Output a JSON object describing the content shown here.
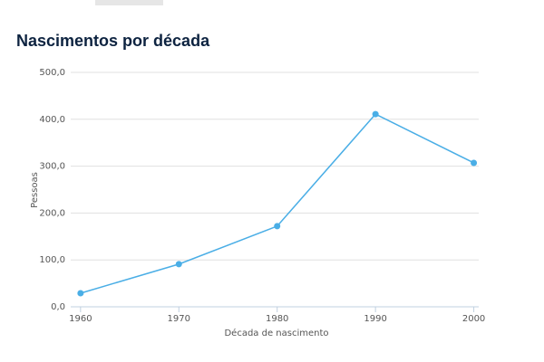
{
  "chart_data": {
    "type": "line",
    "title": "Nascimentos por década",
    "x_label": "Década de nascimento",
    "y_label": "Pessoas",
    "x": [
      1960,
      1970,
      1980,
      1990,
      2000
    ],
    "series": [
      {
        "name": "Pessoas",
        "color": "#4aaee6",
        "values": [
          29,
          91,
          172,
          411,
          307
        ]
      }
    ],
    "xlim": [
      1959,
      2000.5
    ],
    "xticks": [
      1960,
      1970,
      1980,
      1990,
      2000
    ],
    "ylim": [
      0,
      500
    ],
    "yticks": [
      {
        "value": 0,
        "label": "0,0"
      },
      {
        "value": 100,
        "label": "100,0"
      },
      {
        "value": 200,
        "label": "200,0"
      },
      {
        "value": 300,
        "label": "300,0"
      },
      {
        "value": 400,
        "label": "400,0"
      },
      {
        "value": 500,
        "label": "500,0"
      }
    ],
    "grid": true
  }
}
